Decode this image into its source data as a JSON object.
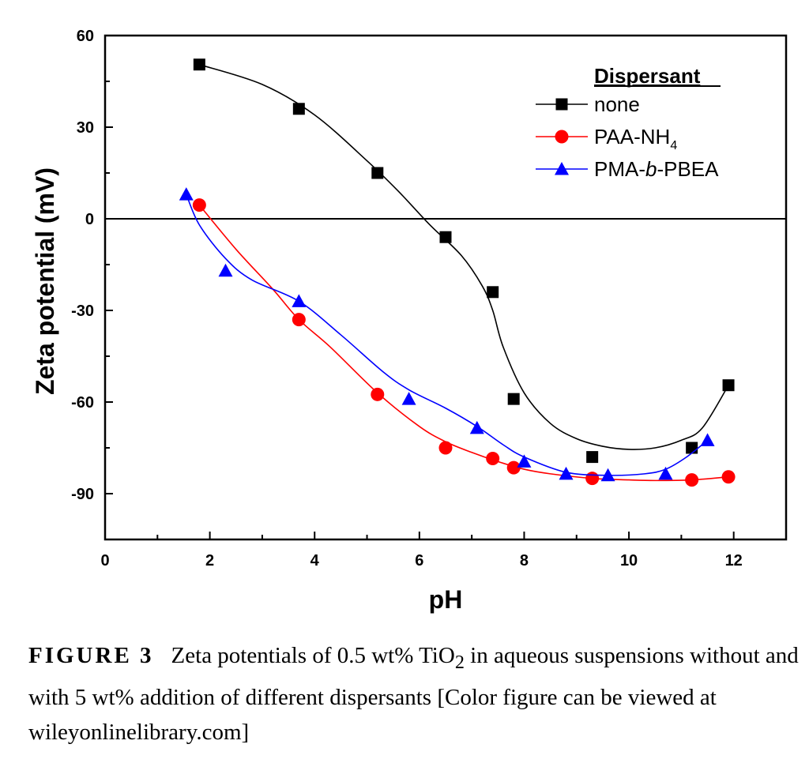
{
  "chart_data": {
    "type": "scatter",
    "xlabel": "pH",
    "ylabel": "Zeta potential (mV)",
    "xlim": [
      0,
      13
    ],
    "ylim": [
      -105,
      60
    ],
    "x_ticks": [
      "0",
      "2",
      "4",
      "6",
      "8",
      "10",
      "12"
    ],
    "y_ticks": [
      "60",
      "30",
      "0",
      "-30",
      "-60",
      "-90"
    ],
    "x_tick_values": [
      0,
      2,
      4,
      6,
      8,
      10,
      12
    ],
    "y_tick_values": [
      60,
      30,
      0,
      -30,
      -60,
      -90
    ],
    "zero_line": true,
    "grid": false,
    "legend": {
      "title": "Dispersant",
      "position": "top-right"
    },
    "series": [
      {
        "name": "none",
        "name_base": "none",
        "name_sub": "",
        "name_tail": "",
        "marker": "square",
        "color": "#000000",
        "x": [
          1.8,
          3.7,
          5.2,
          6.5,
          7.4,
          7.8,
          9.3,
          11.2,
          11.9
        ],
        "y": [
          50.5,
          36,
          15,
          -6,
          -24,
          -59,
          -78,
          -75,
          -54.5
        ],
        "fit_x": [
          1.8,
          3.0,
          4.0,
          5.0,
          5.6,
          6.2,
          6.8,
          7.2,
          7.4,
          7.6,
          8.0,
          8.5,
          9.0,
          9.5,
          10.0,
          10.5,
          11.0,
          11.4,
          11.9
        ],
        "fit_y": [
          50.5,
          44,
          34,
          19,
          9,
          -2,
          -12,
          -22,
          -30,
          -42,
          -57,
          -67,
          -72,
          -74.5,
          -75.5,
          -75,
          -72.5,
          -68.5,
          -54.5
        ]
      },
      {
        "name": "PAA-NH4",
        "name_base": "PAA-NH",
        "name_sub": "4",
        "name_tail": "",
        "marker": "circle",
        "color": "#ff0000",
        "x": [
          1.8,
          3.7,
          5.2,
          6.5,
          7.4,
          7.8,
          9.3,
          11.2,
          11.9
        ],
        "y": [
          4.5,
          -33,
          -57.5,
          -75,
          -78.5,
          -81.5,
          -85,
          -85.5,
          -84.5
        ],
        "fit_x": [
          1.8,
          2.5,
          3.2,
          3.7,
          4.3,
          5.2,
          6.0,
          6.5,
          7.0,
          7.5,
          8.0,
          8.5,
          9.3,
          10.0,
          10.5,
          11.2,
          11.9
        ],
        "fit_y": [
          4.5,
          -10,
          -23,
          -33,
          -42,
          -57,
          -68,
          -73,
          -76.5,
          -79.5,
          -82,
          -83.5,
          -85,
          -85.5,
          -85.7,
          -85.5,
          -84.5
        ]
      },
      {
        "name": "PMA-b-PBEA",
        "name_base": "PMA-",
        "name_sub": "",
        "name_ital": "b",
        "name_tail": "-PBEA",
        "marker": "triangle",
        "color": "#0000ff",
        "x": [
          1.55,
          2.3,
          3.7,
          5.8,
          7.1,
          8.0,
          8.8,
          9.6,
          10.7,
          11.5
        ],
        "y": [
          8,
          -17,
          -27,
          -59,
          -68.5,
          -79.5,
          -83.5,
          -84,
          -83.5,
          -72.5
        ],
        "fit_x": [
          1.55,
          1.8,
          2.3,
          2.8,
          3.7,
          4.5,
          5.3,
          5.8,
          6.5,
          7.1,
          7.6,
          8.0,
          8.8,
          9.6,
          10.3,
          10.7,
          11.1,
          11.5
        ],
        "fit_y": [
          8,
          -2,
          -13,
          -20,
          -27,
          -38,
          -50,
          -56,
          -62,
          -68,
          -74,
          -78,
          -83,
          -84,
          -83.5,
          -82,
          -78,
          -72.5
        ]
      }
    ]
  },
  "caption": {
    "label": "FIGURE 3",
    "text_before_sub": "Zeta potentials of 0.5 wt% TiO",
    "subscript": "2",
    "text_after_sub": " in aqueous suspensions without and with 5 wt% addition of different dispersants [Color figure can be viewed at wileyonlinelibrary.com]"
  }
}
